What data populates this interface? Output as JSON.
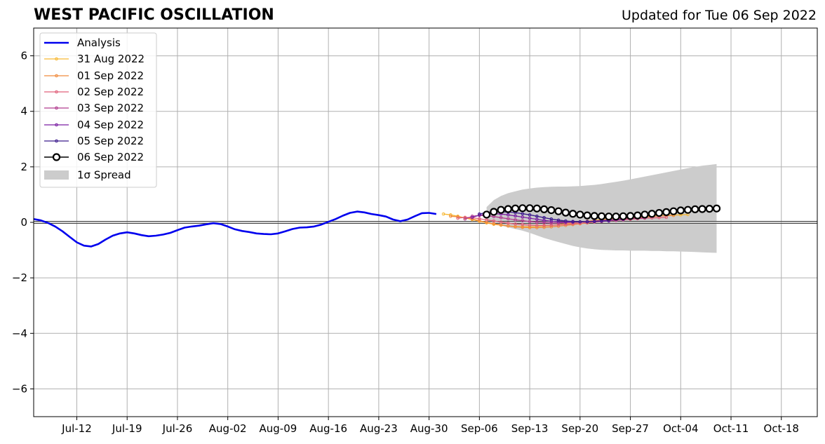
{
  "chart_data": {
    "type": "line",
    "title": "WEST PACIFIC OSCILLATION",
    "subtitle": "Updated for Tue 06 Sep 2022",
    "xlabel": "",
    "ylabel": "",
    "x_start": "2022-07-06",
    "xlim": [
      "2022-07-06",
      "2022-10-23"
    ],
    "ylim": [
      -7,
      7
    ],
    "xticks": [
      {
        "date": "2022-07-12",
        "label": "Jul-12"
      },
      {
        "date": "2022-07-19",
        "label": "Jul-19"
      },
      {
        "date": "2022-07-26",
        "label": "Jul-26"
      },
      {
        "date": "2022-08-02",
        "label": "Aug-02"
      },
      {
        "date": "2022-08-09",
        "label": "Aug-09"
      },
      {
        "date": "2022-08-16",
        "label": "Aug-16"
      },
      {
        "date": "2022-08-23",
        "label": "Aug-23"
      },
      {
        "date": "2022-08-30",
        "label": "Aug-30"
      },
      {
        "date": "2022-09-06",
        "label": "Sep-06"
      },
      {
        "date": "2022-09-13",
        "label": "Sep-13"
      },
      {
        "date": "2022-09-20",
        "label": "Sep-20"
      },
      {
        "date": "2022-09-27",
        "label": "Sep-27"
      },
      {
        "date": "2022-10-04",
        "label": "Oct-04"
      },
      {
        "date": "2022-10-11",
        "label": "Oct-11"
      },
      {
        "date": "2022-10-18",
        "label": "Oct-18"
      }
    ],
    "yticks": [
      {
        "value": 6,
        "label": "6"
      },
      {
        "value": 4,
        "label": "4"
      },
      {
        "value": 2,
        "label": "2"
      },
      {
        "value": 0,
        "label": "0"
      },
      {
        "value": -2,
        "label": "−2"
      },
      {
        "value": -4,
        "label": "−4"
      },
      {
        "value": -6,
        "label": "−6"
      }
    ],
    "grid": true,
    "legend_position": "top-left",
    "analysis": {
      "name": "Analysis",
      "color": "#0000ee",
      "start": "2022-07-06",
      "values": [
        0.12,
        0.07,
        -0.02,
        -0.15,
        -0.32,
        -0.52,
        -0.72,
        -0.84,
        -0.87,
        -0.78,
        -0.62,
        -0.48,
        -0.4,
        -0.36,
        -0.4,
        -0.46,
        -0.5,
        -0.48,
        -0.44,
        -0.38,
        -0.28,
        -0.19,
        -0.15,
        -0.12,
        -0.07,
        -0.03,
        -0.06,
        -0.15,
        -0.25,
        -0.31,
        -0.35,
        -0.4,
        -0.42,
        -0.43,
        -0.4,
        -0.32,
        -0.24,
        -0.19,
        -0.18,
        -0.15,
        -0.08,
        0.02,
        0.12,
        0.24,
        0.34,
        0.39,
        0.36,
        0.3,
        0.26,
        0.21,
        0.1,
        0.04,
        0.1,
        0.22,
        0.33,
        0.34,
        0.3
      ]
    },
    "forecasts": [
      {
        "name": "31 Aug 2022",
        "color": "#f7b731",
        "start": "2022-09-01",
        "values": [
          0.3,
          0.27,
          0.22,
          0.16,
          0.1,
          0.04,
          -0.02,
          -0.07,
          -0.1,
          -0.13,
          -0.15,
          -0.16,
          -0.16,
          -0.15,
          -0.13,
          -0.11,
          -0.08,
          -0.05,
          -0.02,
          0.01,
          0.04,
          0.07,
          0.1,
          0.12,
          0.14,
          0.16,
          0.18,
          0.2,
          0.22,
          0.23,
          0.24,
          0.25,
          0.26,
          0.27,
          0.28
        ]
      },
      {
        "name": "01 Sep 2022",
        "color": "#f18a3c",
        "start": "2022-09-02",
        "values": [
          0.22,
          0.2,
          0.17,
          0.12,
          0.06,
          0.0,
          -0.05,
          -0.09,
          -0.13,
          -0.16,
          -0.18,
          -0.19,
          -0.19,
          -0.18,
          -0.16,
          -0.14,
          -0.11,
          -0.08,
          -0.05,
          -0.02,
          0.01,
          0.04,
          0.07,
          0.1,
          0.13,
          0.15,
          0.17,
          0.19,
          0.21,
          0.23,
          0.24,
          0.25
        ]
      },
      {
        "name": "02 Sep 2022",
        "color": "#e0607a",
        "start": "2022-09-03",
        "values": [
          0.15,
          0.18,
          0.17,
          0.13,
          0.09,
          0.05,
          0.01,
          -0.03,
          -0.06,
          -0.08,
          -0.1,
          -0.11,
          -0.11,
          -0.1,
          -0.09,
          -0.07,
          -0.05,
          -0.03,
          -0.01,
          0.01,
          0.03,
          0.05,
          0.07,
          0.09,
          0.11,
          0.13,
          0.15,
          0.16,
          0.17,
          0.18
        ]
      },
      {
        "name": "03 Sep 2022",
        "color": "#b03a8e",
        "start": "2022-09-04",
        "values": [
          0.12,
          0.22,
          0.25,
          0.24,
          0.21,
          0.17,
          0.13,
          0.09,
          0.06,
          0.03,
          0.01,
          -0.01,
          -0.02,
          -0.02,
          -0.01,
          0.0,
          0.01,
          0.03,
          0.05,
          0.07,
          0.08,
          0.1,
          0.12,
          0.13,
          0.15,
          0.16
        ]
      },
      {
        "name": "04 Sep 2022",
        "color": "#7a1fa2",
        "start": "2022-09-05",
        "values": [
          0.18,
          0.26,
          0.3,
          0.31,
          0.3,
          0.27,
          0.23,
          0.19,
          0.15,
          0.11,
          0.07,
          0.04,
          0.02,
          0.01,
          0.01,
          0.02,
          0.03,
          0.04,
          0.06,
          0.07,
          0.09,
          0.1
        ]
      },
      {
        "name": "05 Sep 2022",
        "color": "#3b1a8c",
        "start": "2022-09-06",
        "values": [
          0.3,
          0.36,
          0.38,
          0.38,
          0.37,
          0.35,
          0.31,
          0.27,
          0.22,
          0.17,
          0.12,
          0.08,
          0.05,
          0.03,
          0.02,
          0.02,
          0.03,
          0.04,
          0.05
        ]
      }
    ],
    "current_forecast": {
      "name": "06 Sep 2022",
      "color": "#000000",
      "start": "2022-09-07",
      "values": [
        0.28,
        0.38,
        0.45,
        0.48,
        0.5,
        0.51,
        0.51,
        0.5,
        0.47,
        0.44,
        0.4,
        0.35,
        0.31,
        0.28,
        0.25,
        0.23,
        0.22,
        0.21,
        0.21,
        0.22,
        0.23,
        0.25,
        0.28,
        0.31,
        0.34,
        0.37,
        0.4,
        0.43,
        0.45,
        0.47,
        0.48,
        0.49,
        0.5
      ],
      "spread_upper": [
        0.55,
        0.8,
        0.95,
        1.05,
        1.12,
        1.18,
        1.22,
        1.25,
        1.27,
        1.28,
        1.29,
        1.29,
        1.3,
        1.31,
        1.33,
        1.35,
        1.38,
        1.42,
        1.46,
        1.5,
        1.55,
        1.6,
        1.65,
        1.7,
        1.75,
        1.8,
        1.85,
        1.9,
        1.95,
        2.0,
        2.04,
        2.07,
        2.1
      ],
      "spread_lower": [
        0.05,
        -0.05,
        -0.12,
        -0.18,
        -0.24,
        -0.3,
        -0.38,
        -0.47,
        -0.56,
        -0.64,
        -0.71,
        -0.78,
        -0.85,
        -0.9,
        -0.94,
        -0.97,
        -0.99,
        -1.0,
        -1.01,
        -1.01,
        -1.02,
        -1.02,
        -1.02,
        -1.03,
        -1.03,
        -1.04,
        -1.04,
        -1.05,
        -1.06,
        -1.07,
        -1.08,
        -1.09,
        -1.1
      ]
    },
    "legend": {
      "analysis_label": "Analysis",
      "spread_label": "1σ Spread",
      "spread_color": "#cccccc"
    }
  }
}
